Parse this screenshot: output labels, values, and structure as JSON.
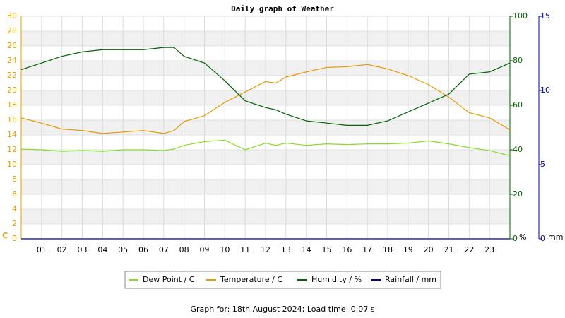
{
  "chart_data": {
    "type": "line",
    "title": "Daily graph of Weather",
    "footer": "Graph for: 18th August 2024; Load time: 0.07 s",
    "y_unit": "C",
    "y2_unit": "%",
    "y3_unit": "mm",
    "x": [
      0,
      1,
      2,
      3,
      4,
      5,
      6,
      7,
      7.5,
      8,
      9,
      10,
      11,
      12,
      12.5,
      13,
      14,
      15,
      16,
      17,
      18,
      19,
      20,
      21,
      22,
      23,
      24
    ],
    "xlim": [
      0,
      24
    ],
    "xticks": [
      {
        "value": 1,
        "label": "01"
      },
      {
        "value": 2,
        "label": "02"
      },
      {
        "value": 3,
        "label": "03"
      },
      {
        "value": 4,
        "label": "04"
      },
      {
        "value": 5,
        "label": "05"
      },
      {
        "value": 6,
        "label": "06"
      },
      {
        "value": 7,
        "label": "07"
      },
      {
        "value": 8,
        "label": "08"
      },
      {
        "value": 9,
        "label": "09"
      },
      10,
      11,
      12,
      13,
      14,
      15,
      16,
      17,
      18,
      19,
      20,
      21,
      22,
      23
    ],
    "ylim": [
      0,
      30
    ],
    "yticks": [
      0,
      2,
      4,
      6,
      8,
      10,
      12,
      14,
      16,
      18,
      20,
      22,
      24,
      26,
      28,
      30
    ],
    "y2lim": [
      0,
      100
    ],
    "y2ticks": [
      0,
      20,
      40,
      60,
      80,
      100
    ],
    "y3lim": [
      0,
      15
    ],
    "y3ticks": [
      0,
      5,
      10,
      15
    ],
    "grid": true,
    "series": [
      {
        "name": "Dew Point / C",
        "color": "#80e020",
        "axis": "y",
        "values": [
          12.1,
          12.0,
          11.8,
          11.9,
          11.8,
          12.0,
          12.0,
          11.9,
          12.1,
          12.6,
          13.1,
          13.3,
          12.0,
          12.9,
          12.6,
          12.9,
          12.6,
          12.8,
          12.7,
          12.8,
          12.8,
          12.9,
          13.2,
          12.8,
          12.3,
          11.9,
          11.2
        ]
      },
      {
        "name": "Temperature / C",
        "color": "#e69a00",
        "axis": "y",
        "values": [
          16.3,
          15.6,
          14.8,
          14.6,
          14.2,
          14.4,
          14.6,
          14.2,
          14.6,
          15.8,
          16.6,
          18.4,
          19.8,
          21.2,
          21.0,
          21.8,
          22.5,
          23.1,
          23.2,
          23.5,
          22.9,
          22.0,
          20.8,
          19.1,
          17.0,
          16.3,
          14.7
        ]
      },
      {
        "name": "Humidity / %",
        "color": "#006400",
        "axis": "y2",
        "values": [
          76,
          79,
          82,
          84,
          85,
          85,
          85,
          86,
          86,
          82,
          79,
          71,
          62,
          59,
          58,
          56,
          53,
          52,
          51,
          51,
          53,
          57,
          61,
          65,
          74,
          75,
          79
        ]
      },
      {
        "name": "Rainfall / mm",
        "color": "#0000a0",
        "axis": "y3",
        "values": [
          0,
          0,
          0,
          0,
          0,
          0,
          0,
          0,
          0,
          0,
          0,
          0,
          0,
          0,
          0,
          0,
          0,
          0,
          0,
          0,
          0,
          0,
          0,
          0,
          0,
          0,
          0
        ]
      }
    ]
  }
}
